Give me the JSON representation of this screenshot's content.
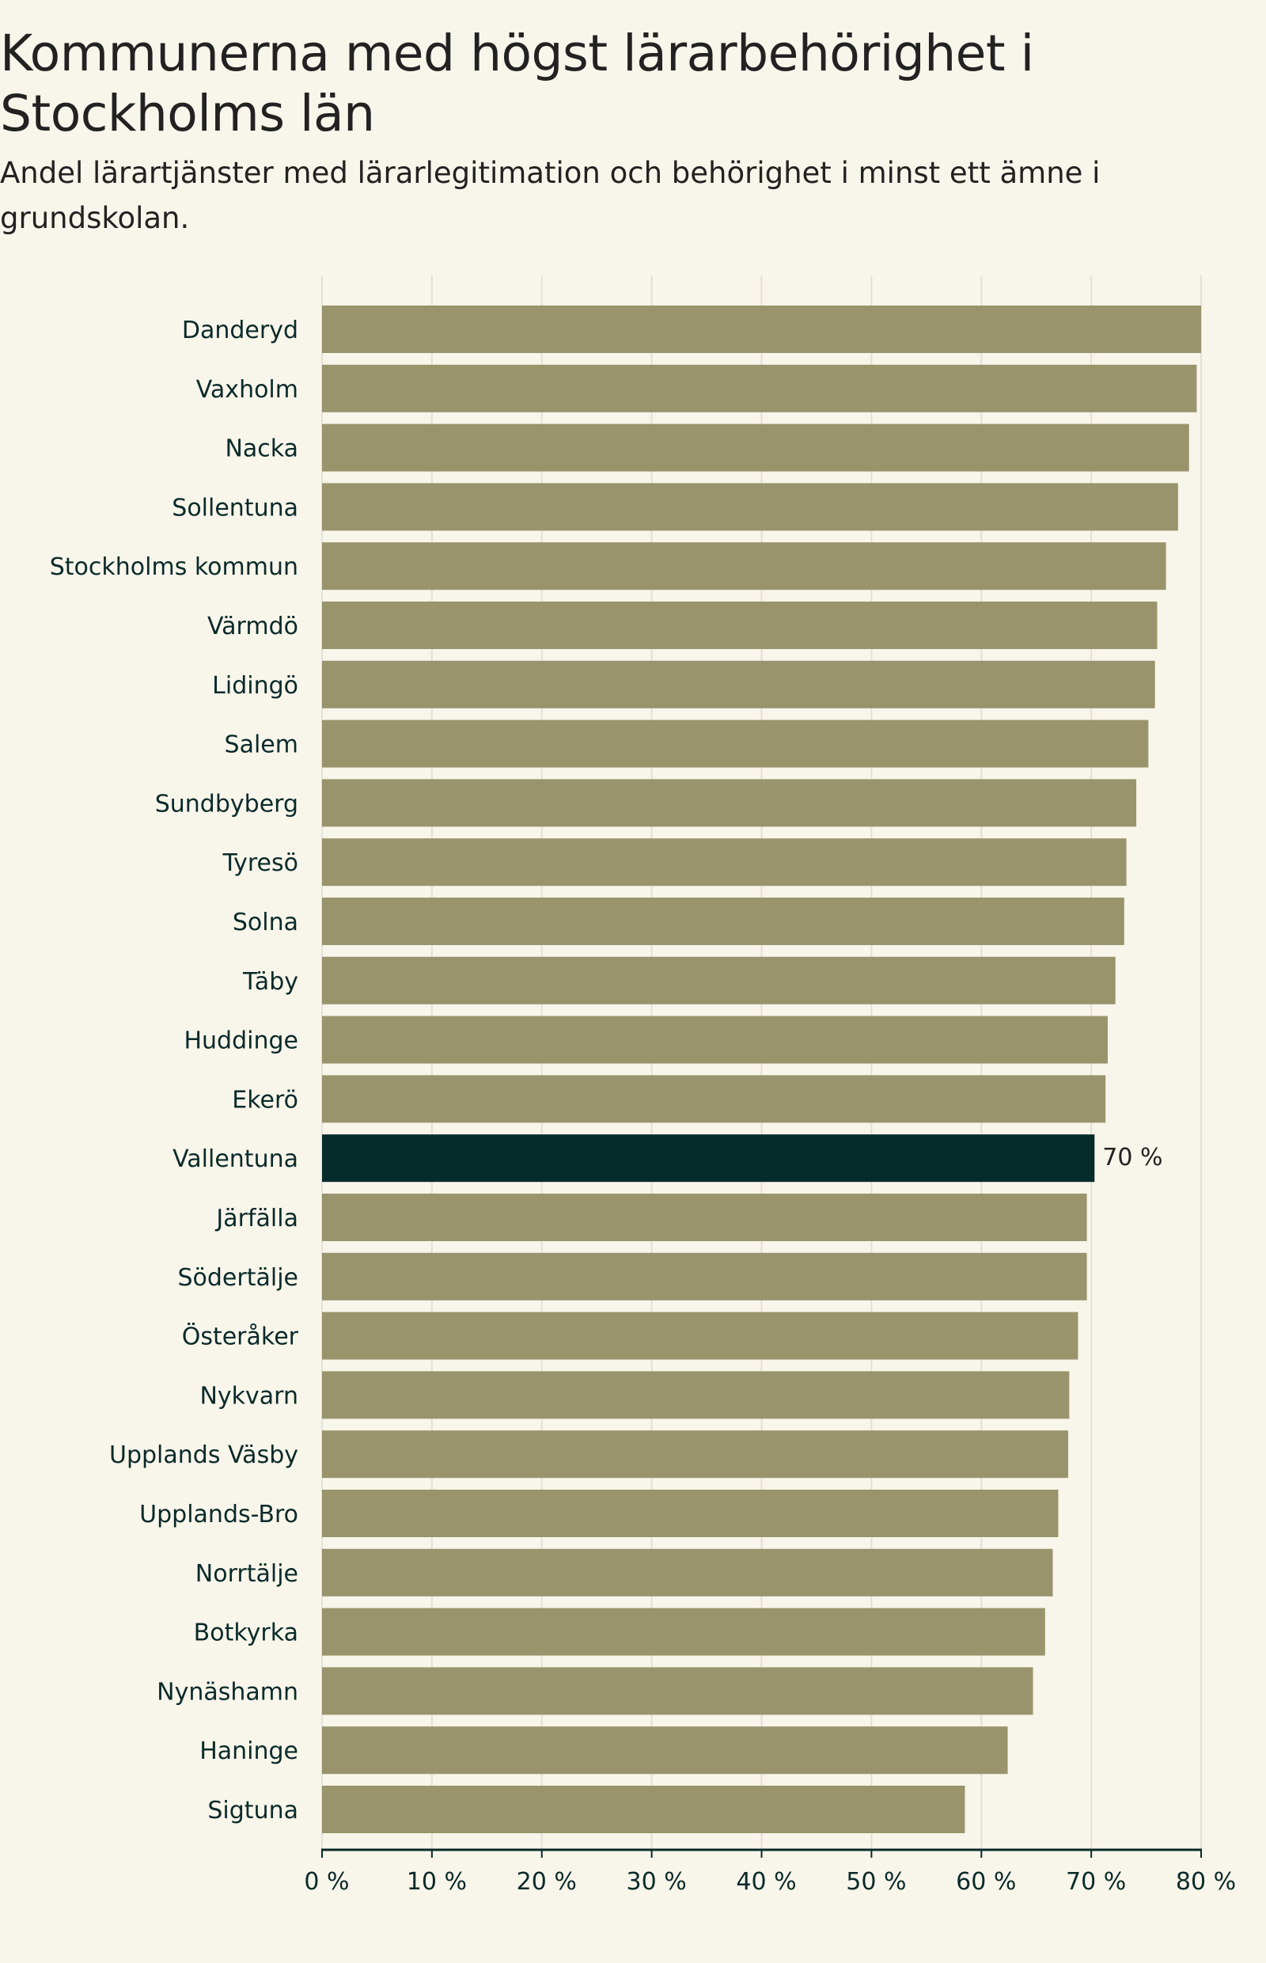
{
  "header": {
    "title": "Kommunerna med högst lärarbehörighet i Stockholms län",
    "subtitle": "Andel lärartjänster med lärarlegitimation och behörighet i minst ett ämne i grundskolan."
  },
  "colors": {
    "background": "#f8f5ea",
    "bar": "#99946b",
    "highlight": "#062b2b",
    "grid": "#e3e0d8",
    "axis": "#0a2a2a",
    "label": "#0a2a2a"
  },
  "chart_data": {
    "type": "bar",
    "orientation": "horizontal",
    "title": "Kommunerna med högst lärarbehörighet i Stockholms län",
    "subtitle": "Andel lärartjänster med lärarlegitimation och behörighet i minst ett ämne i grundskolan.",
    "xlabel": "",
    "ylabel": "",
    "xlim": [
      0,
      80
    ],
    "xticks": [
      0,
      10,
      20,
      30,
      40,
      50,
      60,
      70,
      80
    ],
    "xtick_labels": [
      "0 %",
      "10 %",
      "20 %",
      "30 %",
      "40 %",
      "50 %",
      "60 %",
      "70 %",
      "80 %"
    ],
    "grid": true,
    "categories": [
      "Danderyd",
      "Vaxholm",
      "Nacka",
      "Sollentuna",
      "Stockholms kommun",
      "Värmdö",
      "Lidingö",
      "Salem",
      "Sundbyberg",
      "Tyresö",
      "Solna",
      "Täby",
      "Huddinge",
      "Ekerö",
      "Vallentuna",
      "Järfälla",
      "Södertälje",
      "Österåker",
      "Nykvarn",
      "Upplands Väsby",
      "Upplands-Bro",
      "Norrtälje",
      "Botkyrka",
      "Nynäshamn",
      "Haninge",
      "Sigtuna"
    ],
    "values": [
      80.0,
      79.6,
      78.9,
      77.9,
      76.8,
      76.0,
      75.8,
      75.2,
      74.1,
      73.2,
      73.0,
      72.2,
      71.5,
      71.3,
      70.3,
      69.6,
      69.6,
      68.8,
      68.0,
      67.9,
      67.0,
      66.5,
      65.8,
      64.7,
      62.4,
      58.5
    ],
    "highlight": {
      "category": "Vallentuna",
      "label": "70 %"
    }
  }
}
